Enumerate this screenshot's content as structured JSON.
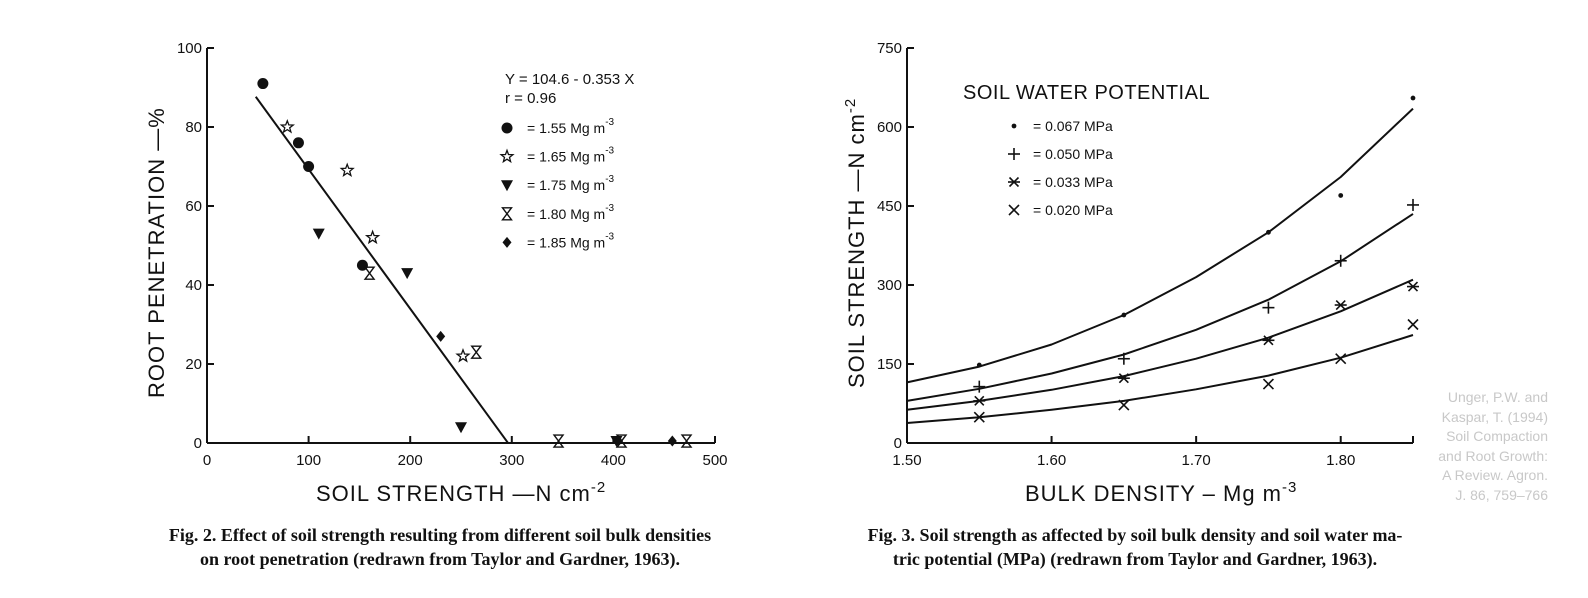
{
  "chart_data": [
    {
      "type": "scatter",
      "xlabel": "SOIL STRENGTH  —N cm",
      "xlabel_sup": "-2",
      "ylabel": "ROOT PENETRATION   —%",
      "xlim": [
        0,
        500
      ],
      "ylim": [
        0,
        100
      ],
      "x_ticks": [
        0,
        100,
        200,
        300,
        400,
        500
      ],
      "y_ticks": [
        0,
        20,
        40,
        60,
        80,
        100
      ],
      "equation": "Y = 104.6 - 0.353 X",
      "r_text": "r = 0.96",
      "regression": {
        "intercept": 104.6,
        "slope": -0.353,
        "x_range": [
          48,
          296
        ]
      },
      "legend_position": "top-right",
      "series": [
        {
          "name": "= 1.55 Mg m",
          "sup": "-3",
          "marker": "circle",
          "points": [
            [
              55,
              91
            ],
            [
              90,
              76
            ],
            [
              100,
              70
            ],
            [
              153,
              45
            ]
          ]
        },
        {
          "name": "= 1.65 Mg m",
          "sup": "-3",
          "marker": "star",
          "points": [
            [
              79,
              80
            ],
            [
              138,
              69
            ],
            [
              163,
              52
            ],
            [
              252,
              22
            ]
          ]
        },
        {
          "name": "= 1.75 Mg m",
          "sup": "-3",
          "marker": "triangle-down",
          "points": [
            [
              110,
              53
            ],
            [
              197,
              43
            ],
            [
              250,
              4
            ],
            [
              403,
              0.5
            ]
          ]
        },
        {
          "name": "= 1.80 Mg m",
          "sup": "-3",
          "marker": "hourglass",
          "points": [
            [
              160,
              43
            ],
            [
              265,
              23
            ],
            [
              346,
              0.5
            ],
            [
              408,
              0.5
            ],
            [
              472,
              0.5
            ]
          ]
        },
        {
          "name": "= 1.85 Mg m",
          "sup": "-3",
          "marker": "diamond",
          "points": [
            [
              230,
              27
            ],
            [
              405,
              0.5
            ],
            [
              458,
              0.5
            ]
          ]
        }
      ]
    },
    {
      "type": "line",
      "xlabel": "BULK DENSITY – Mg m",
      "xlabel_sup": "-3",
      "ylabel": "SOIL STRENGTH  —N cm",
      "ylabel_sup": "-2",
      "xlim": [
        1.5,
        1.85
      ],
      "ylim": [
        0,
        750
      ],
      "x_ticks": [
        1.5,
        1.6,
        1.7,
        1.8
      ],
      "x_tick_labels": [
        "1.50",
        "1.60",
        "1.70",
        "1.80"
      ],
      "y_ticks": [
        0,
        150,
        300,
        450,
        600,
        750
      ],
      "legend_title": "SOIL WATER POTENTIAL",
      "legend_position": "top-left",
      "series": [
        {
          "name": "= 0.067 MPa",
          "marker": "dot",
          "points": [
            [
              1.55,
              148
            ],
            [
              1.65,
              243
            ],
            [
              1.75,
              400
            ],
            [
              1.8,
              470
            ],
            [
              1.85,
              655
            ]
          ],
          "curve": [
            [
              1.5,
              115
            ],
            [
              1.55,
              145
            ],
            [
              1.6,
              187
            ],
            [
              1.65,
              243
            ],
            [
              1.7,
              315
            ],
            [
              1.75,
              400
            ],
            [
              1.8,
              505
            ],
            [
              1.85,
              635
            ]
          ]
        },
        {
          "name": "= 0.050 MPa",
          "marker": "plus",
          "points": [
            [
              1.55,
              107
            ],
            [
              1.65,
              160
            ],
            [
              1.75,
              257
            ],
            [
              1.8,
              346
            ],
            [
              1.85,
              452
            ]
          ],
          "curve": [
            [
              1.5,
              80
            ],
            [
              1.55,
              103
            ],
            [
              1.6,
              132
            ],
            [
              1.65,
              168
            ],
            [
              1.7,
              215
            ],
            [
              1.75,
              272
            ],
            [
              1.8,
              345
            ],
            [
              1.85,
              435
            ]
          ]
        },
        {
          "name": "= 0.033 MPa",
          "marker": "asterisk",
          "points": [
            [
              1.55,
              80
            ],
            [
              1.65,
              123
            ],
            [
              1.75,
              195
            ],
            [
              1.8,
              262
            ],
            [
              1.85,
              297
            ]
          ],
          "curve": [
            [
              1.5,
              63
            ],
            [
              1.55,
              80
            ],
            [
              1.6,
              101
            ],
            [
              1.65,
              127
            ],
            [
              1.7,
              160
            ],
            [
              1.75,
              200
            ],
            [
              1.8,
              250
            ],
            [
              1.85,
              310
            ]
          ]
        },
        {
          "name": "= 0.020 MPa",
          "marker": "x",
          "points": [
            [
              1.55,
              49
            ],
            [
              1.65,
              72
            ],
            [
              1.75,
              112
            ],
            [
              1.8,
              160
            ],
            [
              1.85,
              225
            ]
          ],
          "curve": [
            [
              1.5,
              38
            ],
            [
              1.55,
              49
            ],
            [
              1.6,
              63
            ],
            [
              1.65,
              80
            ],
            [
              1.7,
              102
            ],
            [
              1.75,
              128
            ],
            [
              1.8,
              162
            ],
            [
              1.85,
              205
            ]
          ]
        }
      ]
    }
  ],
  "captions": {
    "fig2_line1": "Fig. 2.  Effect of soil strength resulting from different soil bulk densities",
    "fig2_line2": "on root penetration (redrawn from Taylor and Gardner, 1963).",
    "fig3_line1": "Fig. 3.  Soil strength as affected by soil bulk density and soil water ma-",
    "fig3_line2": "tric potential (MPa) (redrawn from Taylor and Gardner, 1963)."
  },
  "credit": {
    "line1": "Unger, P.W. and",
    "line2": "Kaspar, T. (1994)",
    "line3": "Soil Compaction",
    "line4": "and Root Growth:",
    "line5": "A Review. Agron.",
    "line6": "J. 86, 759–766"
  }
}
